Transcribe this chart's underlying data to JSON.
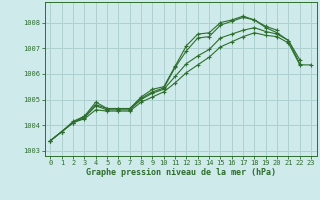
{
  "title": "Graphe pression niveau de la mer (hPa)",
  "bg_color": "#ceeaea",
  "grid_color": "#aed0d0",
  "line_color": "#2d6e2d",
  "xlim": [
    -0.5,
    23.5
  ],
  "ylim": [
    1002.8,
    1008.8
  ],
  "yticks": [
    1003,
    1004,
    1005,
    1006,
    1007,
    1008
  ],
  "xticks": [
    0,
    1,
    2,
    3,
    4,
    5,
    6,
    7,
    8,
    9,
    10,
    11,
    12,
    13,
    14,
    15,
    16,
    17,
    18,
    19,
    20,
    21,
    22,
    23
  ],
  "series": [
    [
      1003.4,
      1003.75,
      1004.15,
      1004.35,
      1004.9,
      1004.65,
      1004.65,
      1004.65,
      1005.1,
      1005.4,
      1005.5,
      1006.3,
      1007.1,
      1007.55,
      1007.6,
      1008.0,
      1008.1,
      1008.25,
      1008.1,
      1007.85,
      1007.7,
      null,
      null,
      null
    ],
    [
      1003.4,
      1003.75,
      1004.1,
      1004.35,
      1004.8,
      1004.65,
      1004.65,
      1004.65,
      1005.05,
      1005.3,
      1005.45,
      1006.25,
      1006.9,
      1007.4,
      1007.45,
      1007.9,
      1008.05,
      1008.2,
      1008.1,
      1007.8,
      1007.6,
      1007.3,
      1006.55,
      null
    ],
    [
      1003.4,
      1003.75,
      1004.1,
      1004.3,
      1004.75,
      1004.6,
      1004.6,
      1004.6,
      1005.0,
      1005.25,
      1005.4,
      1005.9,
      1006.4,
      1006.7,
      1006.95,
      1007.4,
      1007.55,
      1007.7,
      1007.8,
      1007.65,
      1007.55,
      1007.3,
      1006.4,
      null
    ],
    [
      1003.4,
      1003.75,
      1004.1,
      1004.25,
      1004.6,
      1004.55,
      1004.55,
      1004.55,
      1004.9,
      1005.1,
      1005.3,
      1005.65,
      1006.05,
      1006.35,
      1006.65,
      1007.05,
      1007.25,
      1007.45,
      1007.6,
      1007.5,
      1007.45,
      1007.2,
      1006.35,
      1006.35
    ]
  ]
}
